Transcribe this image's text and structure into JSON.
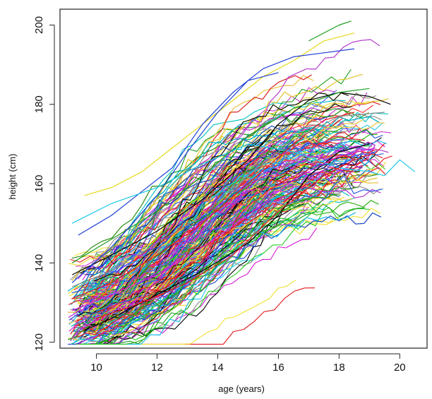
{
  "chart_data": {
    "type": "line",
    "title": "",
    "xlabel": "age (years)",
    "ylabel": "height (cm)",
    "xlim": [
      8.8,
      20.9
    ],
    "ylim": [
      118.5,
      204
    ],
    "x_ticks": [
      10,
      12,
      14,
      16,
      18,
      20
    ],
    "y_ticks": [
      120,
      140,
      160,
      180,
      200
    ],
    "x_tick_labels": [
      "10",
      "12",
      "14",
      "16",
      "18",
      "20"
    ],
    "y_tick_labels": [
      "120",
      "140",
      "160",
      "180",
      "200"
    ],
    "grid": false,
    "legend": "none",
    "description_of_series": "many individual growth curves (height vs age), one line per subject",
    "series_colors": [
      "#000000",
      "#e41a1c",
      "#1a9e1a",
      "#1f3fd6",
      "#1ec8e6",
      "#d61ad6",
      "#e6d81a",
      "#8a8a8a",
      "#ff3030",
      "#22cc22",
      "#3a5cff",
      "#00bfbf",
      "#cc33cc",
      "#f0e030"
    ],
    "representative_series": [
      {
        "name": "",
        "color": "#1a9e1a",
        "x": [
          17.0,
          18.0,
          18.4
        ],
        "y": [
          196,
          200,
          201
        ]
      },
      {
        "name": "",
        "color": "#e6d81a",
        "x": [
          9.6,
          10.5,
          11.5,
          12.5,
          13.5,
          14.5,
          15.5,
          16.5,
          17.5,
          18.5
        ],
        "y": [
          157,
          159,
          163,
          169,
          175,
          181,
          187,
          191,
          196,
          198
        ]
      },
      {
        "name": "",
        "color": "#1f3fd6",
        "x": [
          9.4,
          10.5,
          11.5,
          12.5,
          13.5,
          14.5,
          15.5,
          16.5,
          17.5,
          18.5
        ],
        "y": [
          147,
          152,
          158,
          164,
          175,
          183,
          189,
          192,
          193,
          194
        ]
      },
      {
        "name": "",
        "color": "#1ec8e6",
        "x": [
          9.2,
          10.5,
          12.0,
          13.5,
          15.0,
          16.5,
          18.0,
          19.0,
          19.5,
          20.0,
          20.5
        ],
        "y": [
          150,
          155,
          159,
          165,
          170,
          168,
          164,
          163,
          162,
          166,
          163
        ]
      },
      {
        "name": "",
        "color": "#000000",
        "x": [
          9.2,
          10.5,
          12.0,
          13.5,
          15.0,
          16.0,
          17.0,
          18.0,
          19.0,
          19.7
        ],
        "y": [
          137,
          142,
          148,
          156,
          166,
          175,
          181,
          183,
          182,
          180
        ]
      },
      {
        "name": "",
        "color": "#000000",
        "x": [
          9.6,
          10.5,
          12.0,
          13.5,
          15.0,
          16.0,
          17.0,
          18.0,
          19.0
        ],
        "y": [
          123,
          126,
          132,
          138,
          145,
          152,
          162,
          168,
          170
        ]
      },
      {
        "name": "",
        "color": "#e41a1c",
        "x": [
          9.2,
          10.5,
          12.0,
          13.5,
          15.0,
          16.5,
          17.5,
          18.5
        ],
        "y": [
          131,
          135,
          142,
          150,
          160,
          170,
          176,
          178
        ]
      },
      {
        "name": "",
        "color": "#1a9e1a",
        "x": [
          9.2,
          10.5,
          12.0,
          13.5,
          15.0,
          16.5,
          18.0,
          19.0
        ],
        "y": [
          140,
          146,
          153,
          162,
          172,
          179,
          183,
          184
        ]
      },
      {
        "name": "",
        "color": "#d61ad6",
        "x": [
          9.2,
          10.5,
          12.0,
          13.5,
          15.0,
          16.5,
          18.0,
          19.2
        ],
        "y": [
          128,
          132,
          137,
          144,
          152,
          161,
          167,
          169
        ]
      },
      {
        "name": "",
        "color": "#8a8a8a",
        "x": [
          9.2,
          10.5,
          12.0,
          13.5,
          15.0,
          16.5,
          18.0,
          19.5
        ],
        "y": [
          134,
          138,
          145,
          152,
          162,
          171,
          177,
          178
        ]
      },
      {
        "name": "",
        "color": "#1f3fd6",
        "x": [
          9.2,
          10.5,
          12.0,
          13.0,
          14.0,
          15.0,
          16.0
        ],
        "y": [
          135,
          144,
          157,
          168,
          178,
          186,
          188
        ]
      },
      {
        "name": "",
        "color": "#e41a1c",
        "x": [
          10.0,
          11.5,
          13.0,
          14.5,
          16.0,
          17.5,
          18.5
        ],
        "y": [
          126,
          130,
          135,
          142,
          153,
          162,
          166
        ]
      }
    ],
    "num_series_depicted": 340
  }
}
